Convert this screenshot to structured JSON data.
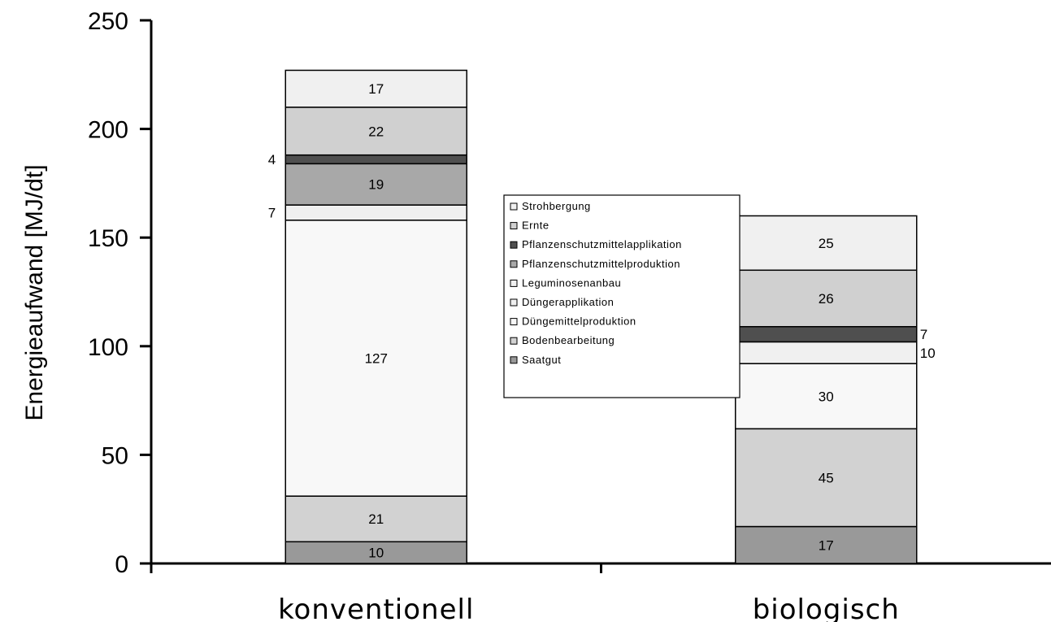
{
  "chart_data": {
    "type": "bar",
    "stacked": true,
    "title": "",
    "xlabel": "",
    "ylabel": "Energieaufwand [MJ/dt]",
    "ylim": [
      0,
      250
    ],
    "yticks": [
      0,
      50,
      100,
      150,
      200,
      250
    ],
    "categories": [
      "konventionell",
      "biologisch"
    ],
    "series": [
      {
        "name": "Saatgut",
        "values": [
          10,
          17
        ],
        "color": "#999999"
      },
      {
        "name": "Bodenbearbeitung",
        "values": [
          21,
          45
        ],
        "color": "#d2d2d2"
      },
      {
        "name": "Düngemittelproduktion",
        "values": [
          127,
          30
        ],
        "color": "#f8f8f8"
      },
      {
        "name": "Düngerapplikation",
        "values": [
          7,
          0
        ],
        "color": "#f0f0f0"
      },
      {
        "name": "Leguminosenanbau",
        "values": [
          0,
          10
        ],
        "color": "#f0f0f0"
      },
      {
        "name": "Pflanzenschutzmittelproduktion",
        "values": [
          19,
          0
        ],
        "color": "#a8a8a8"
      },
      {
        "name": "Pflanzenschutzmittelapplikation",
        "values": [
          4,
          7
        ],
        "color": "#4f4f4f"
      },
      {
        "name": "Ernte",
        "values": [
          22,
          26
        ],
        "color": "#d0d0d0"
      },
      {
        "name": "Strohbergung",
        "values": [
          17,
          25
        ],
        "color": "#f0f0f0"
      }
    ],
    "segment_labels": [
      [
        {
          "text": "10",
          "series": 0
        },
        {
          "text": "21",
          "series": 1
        },
        {
          "text": "127",
          "series": 2
        },
        {
          "text": "7",
          "series": 3,
          "outside": "left"
        },
        {
          "text": "19",
          "series": 5
        },
        {
          "text": "4",
          "series": 6,
          "outside": "left"
        },
        {
          "text": "22",
          "series": 7
        },
        {
          "text": "17",
          "series": 8
        }
      ],
      [
        {
          "text": "17",
          "series": 0
        },
        {
          "text": "45",
          "series": 1
        },
        {
          "text": "30",
          "series": 2
        },
        {
          "text": "10",
          "series": 4,
          "outside": "right"
        },
        {
          "text": "7",
          "series": 6,
          "outside": "right"
        },
        {
          "text": "26",
          "series": 7
        },
        {
          "text": "25",
          "series": 8
        }
      ]
    ],
    "legend": {
      "placement": "center",
      "entries": [
        "Strohbergung",
        "Ernte",
        "Pflanzenschutzmittelapplikation",
        "Pflanzenschutzmittelproduktion",
        "Leguminosenanbau",
        "Düngerapplikation",
        "Düngemittelproduktion",
        "Bodenbearbeitung",
        "Saatgut"
      ]
    },
    "grid": false
  }
}
